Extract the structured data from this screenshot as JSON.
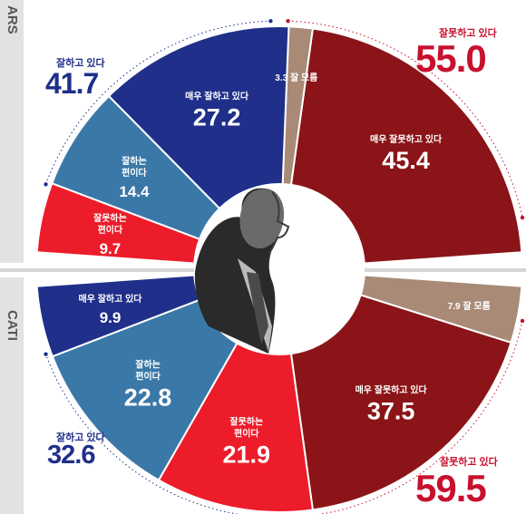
{
  "side_labels": {
    "top": "ARS",
    "bottom": "CATI"
  },
  "totals": {
    "ars_good": {
      "label": "잘하고 있다",
      "value": "41.7"
    },
    "ars_bad": {
      "label": "잘못하고 있다",
      "value": "55.0"
    },
    "cati_good": {
      "label": "잘하고 있다",
      "value": "32.6"
    },
    "cati_bad": {
      "label": "잘못하고 있다",
      "value": "59.5"
    }
  },
  "colors": {
    "very_good": "#1f2f8a",
    "somewhat_good": "#3a78a8",
    "somewhat_bad": "#ec1c2a",
    "very_bad": "#8b1418",
    "dont_know": "#a88a77",
    "good_total": "#1f2f8a",
    "bad_total": "#c8102e"
  },
  "chart_data": {
    "type": "pie",
    "title": "",
    "sections": [
      {
        "name": "ARS",
        "half": "top",
        "slices": [
          {
            "label": "매우 잘못하고 있다",
            "value": 45.4,
            "color": "#8b1418"
          },
          {
            "label": "잘 모름",
            "value": 3.3,
            "color": "#a88a77"
          },
          {
            "label": "매우 잘하고 있다",
            "value": 27.2,
            "color": "#1f2f8a"
          },
          {
            "label": "잘하는 편이다",
            "value": 14.4,
            "color": "#3a78a8"
          },
          {
            "label": "잘못하는 편이다",
            "value": 9.7,
            "color": "#ec1c2a"
          }
        ]
      },
      {
        "name": "CATI",
        "half": "bottom",
        "slices": [
          {
            "label": "잘 모름",
            "value": 7.9,
            "color": "#a88a77"
          },
          {
            "label": "매우 잘못하고 있다",
            "value": 37.5,
            "color": "#8b1418"
          },
          {
            "label": "잘못하는 편이다",
            "value": 21.9,
            "color": "#ec1c2a"
          },
          {
            "label": "잘하는 편이다",
            "value": 22.8,
            "color": "#3a78a8"
          },
          {
            "label": "매우 잘하고 있다",
            "value": 9.9,
            "color": "#1f2f8a"
          }
        ]
      }
    ]
  }
}
